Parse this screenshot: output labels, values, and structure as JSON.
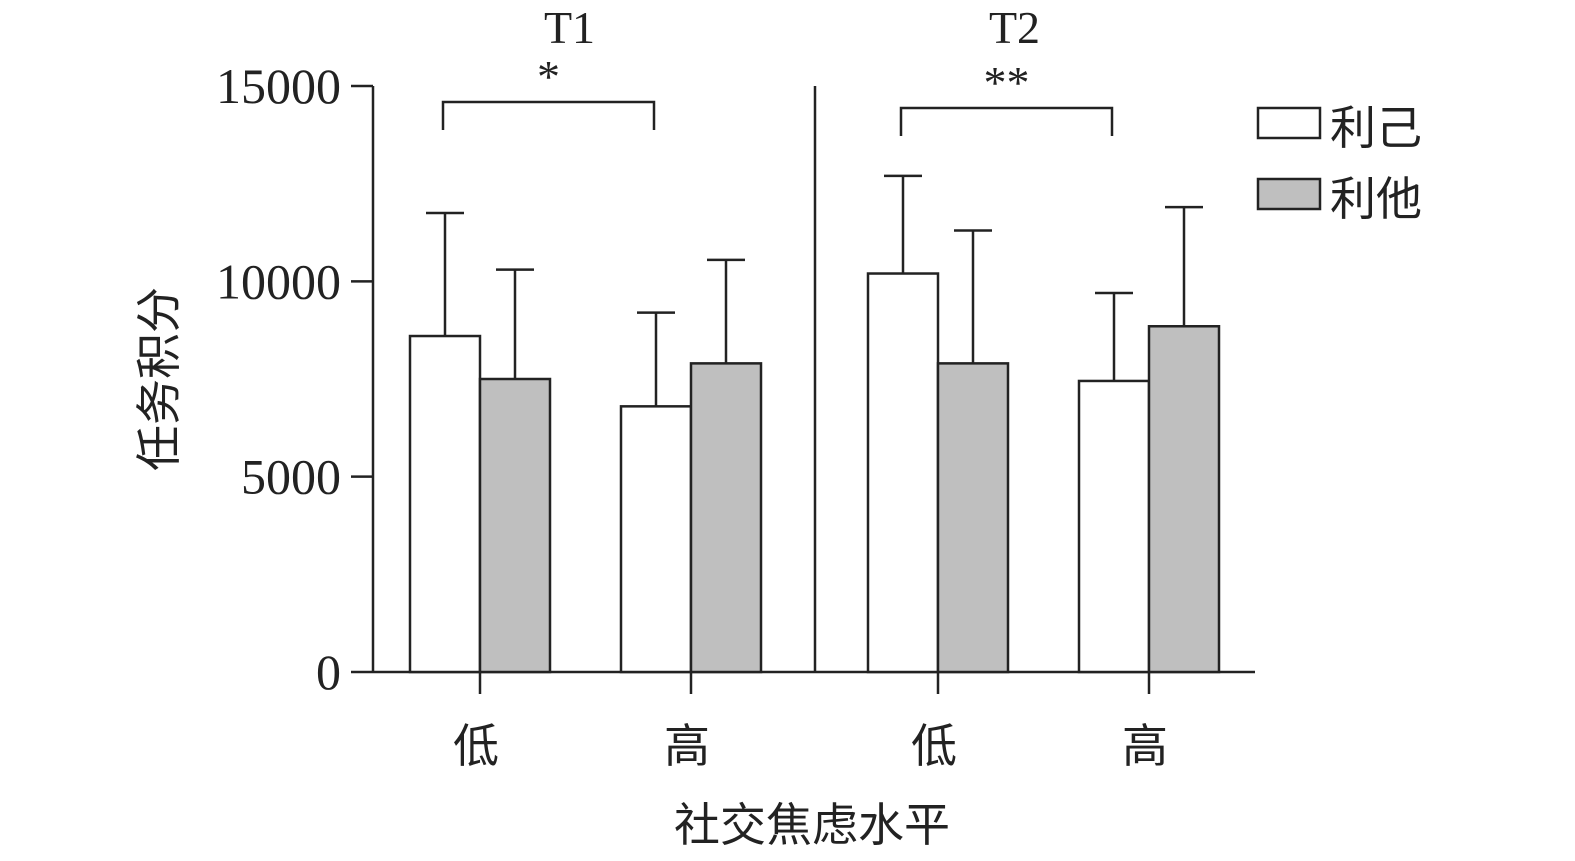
{
  "chart_data": {
    "type": "bar",
    "ylabel": "任务积分",
    "xlabel": "社交焦虑水平",
    "ylim": [
      0,
      15000
    ],
    "yticks": [
      0,
      5000,
      10000,
      15000
    ],
    "ytick_labels": [
      "0",
      "5000",
      "10000",
      "15000"
    ],
    "categories": [
      "低",
      "高"
    ],
    "legend": {
      "placement": "top-right",
      "entries": [
        "利己",
        "利他"
      ]
    },
    "colors": {
      "利己": "#ffffff",
      "利他": "#bfbfbf",
      "stroke": "#222222"
    },
    "panels": [
      {
        "title": "T1",
        "series": [
          {
            "name": "利己",
            "values": [
              8600,
              6800
            ],
            "errors": [
              3150,
              2400
            ]
          },
          {
            "name": "利他",
            "values": [
              7500,
              7900
            ],
            "errors": [
              2800,
              2650
            ]
          }
        ],
        "significance": {
          "label": "*",
          "between": [
            "低",
            "高"
          ],
          "series": "利己"
        }
      },
      {
        "title": "T2",
        "series": [
          {
            "name": "利己",
            "values": [
              10200,
              7450
            ],
            "errors": [
              2500,
              2250
            ]
          },
          {
            "name": "利他",
            "values": [
              7900,
              8850
            ],
            "errors": [
              3400,
              3050
            ]
          }
        ],
        "significance": {
          "label": "**",
          "between": [
            "低",
            "高"
          ],
          "series": "利己"
        }
      }
    ]
  }
}
